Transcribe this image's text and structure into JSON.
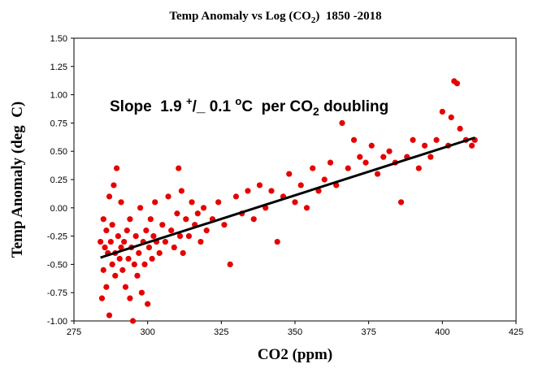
{
  "chart_data": {
    "type": "scatter",
    "title": [
      "Temp Anomaly vs Log (CO",
      "2",
      ")  1850 -2018"
    ],
    "annotation": [
      "Slope  1.9 ",
      "+",
      "/",
      "_",
      " 0.1 ",
      "o",
      "C  per CO",
      "2",
      " doubling"
    ],
    "xlabel": "CO2 (ppm)",
    "ylabel": "Temp Anomaly (deg  C)",
    "xlim": [
      275,
      425
    ],
    "xticks": [
      275,
      300,
      325,
      350,
      375,
      400,
      425
    ],
    "ylim": [
      -1.0,
      1.5
    ],
    "yticks": [
      {
        "value": -1.0,
        "label": "-1.00"
      },
      {
        "value": -0.75,
        "label": "-0.75"
      },
      {
        "value": -0.5,
        "label": "-0.50"
      },
      {
        "value": -0.25,
        "label": "-0.25"
      },
      {
        "value": 0,
        "label": "0.00"
      },
      {
        "value": 0.25,
        "label": "0.25"
      },
      {
        "value": 0.5,
        "label": "0.50"
      },
      {
        "value": 0.75,
        "label": "0.75"
      },
      {
        "value": 1.0,
        "label": "1.00"
      },
      {
        "value": 1.25,
        "label": "1.25"
      },
      {
        "value": 1.5,
        "label": "1.50"
      }
    ],
    "color": "#e60000",
    "x": [
      284,
      284.5,
      285,
      285,
      285.5,
      286,
      286,
      286.5,
      287,
      287,
      287.5,
      288,
      288,
      288.5,
      289,
      289,
      289.5,
      290,
      290.5,
      291,
      291,
      291.5,
      292,
      292.5,
      293,
      293.5,
      294,
      294,
      294.5,
      295,
      295.5,
      296,
      296.5,
      297,
      297.5,
      298,
      298.5,
      299,
      299.5,
      300,
      300.5,
      301,
      301.5,
      302,
      302.5,
      303,
      304,
      305,
      306,
      307,
      308,
      309,
      310,
      310.5,
      311,
      311.5,
      312,
      313,
      314,
      315,
      316,
      317,
      318,
      319,
      320,
      322,
      324,
      326,
      328,
      330,
      332,
      334,
      336,
      338,
      340,
      342,
      344,
      346,
      348,
      350,
      352,
      354,
      356,
      358,
      360,
      362,
      364,
      366,
      368,
      370,
      372,
      374,
      376,
      378,
      380,
      382,
      384,
      386,
      388,
      390,
      392,
      394,
      396,
      398,
      400,
      402,
      403,
      404,
      405,
      406,
      408,
      410,
      411
    ],
    "values": [
      -0.3,
      -0.8,
      -0.1,
      -0.55,
      -0.35,
      -0.2,
      -0.7,
      -0.4,
      -0.95,
      0.1,
      -0.3,
      -0.5,
      -0.15,
      0.2,
      -0.4,
      -0.6,
      0.35,
      -0.25,
      -0.45,
      -0.35,
      0.05,
      -0.55,
      -0.3,
      -0.7,
      -0.2,
      -0.45,
      -0.8,
      -0.1,
      -0.35,
      -1.0,
      -0.5,
      -0.25,
      -0.6,
      -0.4,
      0.0,
      -0.75,
      -0.3,
      -0.5,
      -0.2,
      -0.85,
      -0.35,
      -0.1,
      -0.45,
      -0.25,
      0.05,
      -0.3,
      -0.4,
      -0.15,
      -0.3,
      0.1,
      -0.2,
      -0.35,
      -0.05,
      0.35,
      -0.25,
      0.15,
      -0.4,
      -0.1,
      -0.25,
      0.05,
      -0.15,
      -0.05,
      -0.3,
      0.0,
      -0.2,
      -0.1,
      0.05,
      -0.15,
      -0.5,
      0.1,
      -0.05,
      0.15,
      -0.1,
      0.2,
      0.0,
      0.15,
      -0.3,
      0.1,
      0.3,
      0.05,
      0.2,
      0.0,
      0.35,
      0.15,
      0.25,
      0.4,
      0.2,
      0.75,
      0.35,
      0.6,
      0.45,
      0.4,
      0.55,
      0.3,
      0.45,
      0.5,
      0.4,
      0.05,
      0.45,
      0.6,
      0.35,
      0.55,
      0.45,
      0.6,
      0.85,
      0.55,
      0.8,
      1.12,
      1.1,
      0.7,
      0.6,
      0.55,
      0.6
    ],
    "fit_line": {
      "x": [
        284,
        411
      ],
      "values": [
        -0.44,
        0.62
      ],
      "color": "#000000"
    }
  }
}
